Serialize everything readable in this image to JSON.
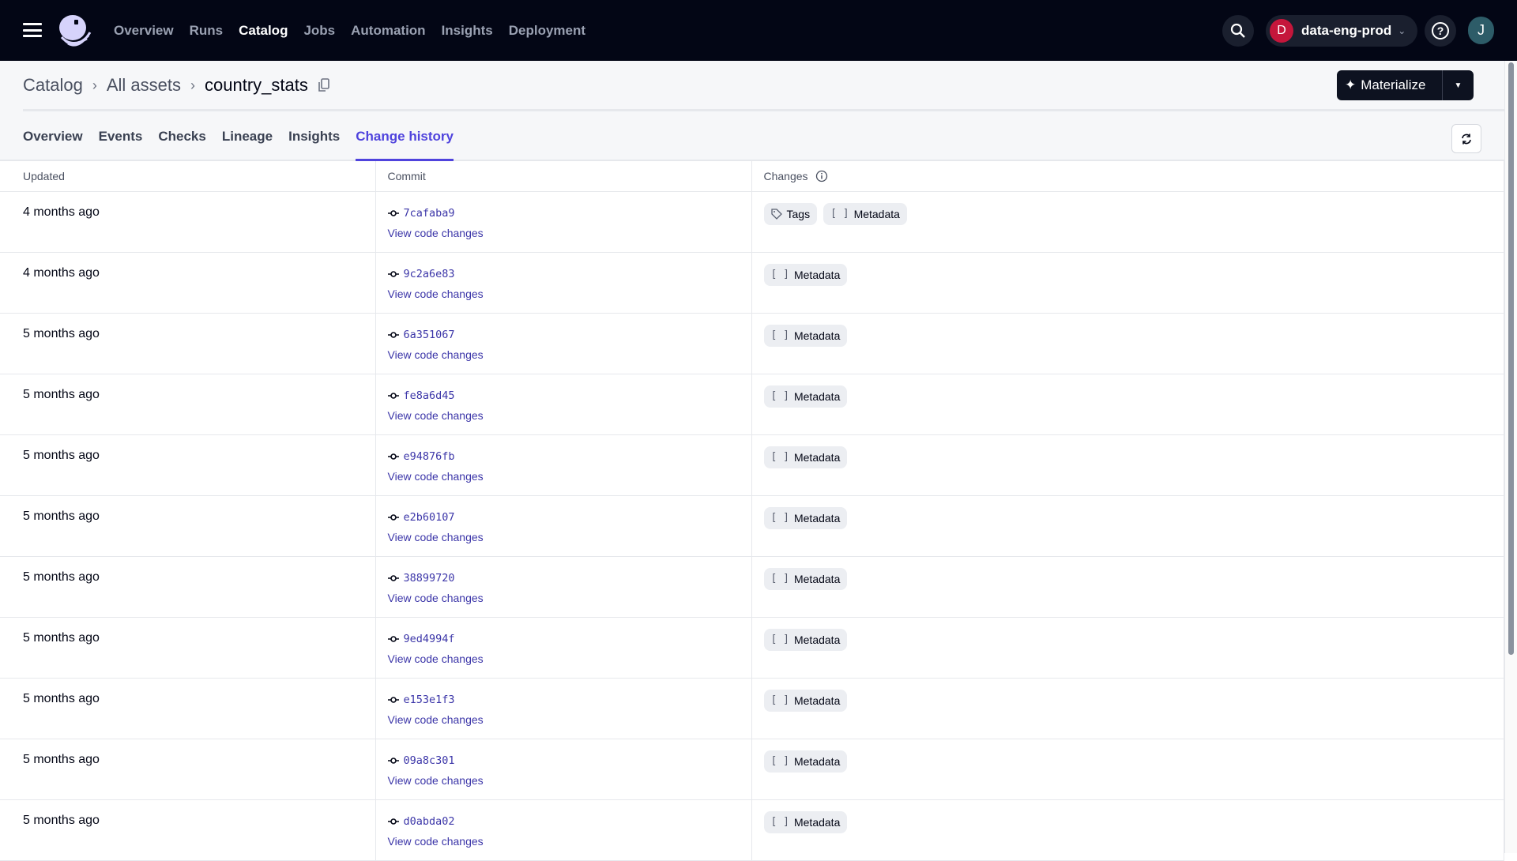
{
  "nav": {
    "items": [
      {
        "label": "Overview",
        "active": false
      },
      {
        "label": "Runs",
        "active": false
      },
      {
        "label": "Catalog",
        "active": true
      },
      {
        "label": "Jobs",
        "active": false
      },
      {
        "label": "Automation",
        "active": false
      },
      {
        "label": "Insights",
        "active": false
      },
      {
        "label": "Deployment",
        "active": false
      }
    ],
    "workspace": {
      "initial": "D",
      "name": "data-eng-prod",
      "color": "#c5163b"
    },
    "user_initial": "J"
  },
  "breadcrumb": {
    "items": [
      "Catalog",
      "All assets"
    ],
    "current": "country_stats"
  },
  "materialize_label": "Materialize",
  "tabs": [
    {
      "label": "Overview"
    },
    {
      "label": "Events"
    },
    {
      "label": "Checks"
    },
    {
      "label": "Lineage"
    },
    {
      "label": "Insights"
    },
    {
      "label": "Change history",
      "active": true
    }
  ],
  "table": {
    "headers": [
      "Updated",
      "Commit",
      "Changes"
    ],
    "link_label": "View code changes",
    "rows": [
      {
        "updated": "4 months ago",
        "commit": "7cafaba9",
        "changes": [
          "Tags",
          "Metadata"
        ]
      },
      {
        "updated": "4 months ago",
        "commit": "9c2a6e83",
        "changes": [
          "Metadata"
        ]
      },
      {
        "updated": "5 months ago",
        "commit": "6a351067",
        "changes": [
          "Metadata"
        ]
      },
      {
        "updated": "5 months ago",
        "commit": "fe8a6d45",
        "changes": [
          "Metadata"
        ]
      },
      {
        "updated": "5 months ago",
        "commit": "e94876fb",
        "changes": [
          "Metadata"
        ]
      },
      {
        "updated": "5 months ago",
        "commit": "e2b60107",
        "changes": [
          "Metadata"
        ]
      },
      {
        "updated": "5 months ago",
        "commit": "38899720",
        "changes": [
          "Metadata"
        ]
      },
      {
        "updated": "5 months ago",
        "commit": "9ed4994f",
        "changes": [
          "Metadata"
        ]
      },
      {
        "updated": "5 months ago",
        "commit": "e153e1f3",
        "changes": [
          "Metadata"
        ]
      },
      {
        "updated": "5 months ago",
        "commit": "09a8c301",
        "changes": [
          "Metadata"
        ]
      },
      {
        "updated": "5 months ago",
        "commit": "d0abda02",
        "changes": [
          "Metadata"
        ]
      }
    ]
  },
  "colors": {
    "accent": "#4f43dd",
    "nav_bg": "#030615",
    "link": "#3b35a8"
  }
}
